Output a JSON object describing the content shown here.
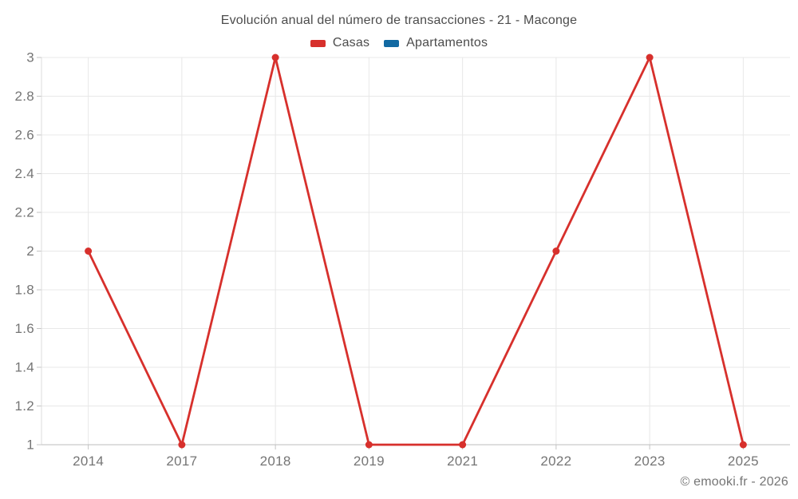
{
  "header": {
    "title": "Evolución anual del número de transacciones - 21 - Maconge"
  },
  "legend": {
    "items": [
      {
        "label": "Casas",
        "color": "#d7302c"
      },
      {
        "label": "Apartamentos",
        "color": "#1269a2"
      }
    ]
  },
  "chart_data": {
    "type": "line",
    "title": "Evolución anual del número de transacciones - 21 - Maconge",
    "categories": [
      "2014",
      "2017",
      "2018",
      "2019",
      "2021",
      "2022",
      "2023",
      "2025"
    ],
    "series": [
      {
        "name": "Casas",
        "color": "#d7302c",
        "values": [
          2,
          1,
          3,
          1,
          1,
          2,
          3,
          1
        ]
      },
      {
        "name": "Apartamentos",
        "color": "#1269a2",
        "values": []
      }
    ],
    "xlabel": "",
    "ylabel": "",
    "ylim": [
      1,
      3
    ],
    "y_ticks": {
      "values": [
        1,
        1.2,
        1.4,
        1.6,
        1.8,
        2,
        2.2,
        2.4,
        2.6,
        2.8,
        3
      ],
      "labels": [
        "1",
        "1.2",
        "1.4",
        "1.6",
        "1.8",
        "2",
        "2.2",
        "2.4",
        "2.6",
        "2.8",
        "3"
      ]
    },
    "grid": true,
    "legend_position": "top",
    "marker_radius": 4.5,
    "line_width": 2.8
  },
  "colors": {
    "grid": "#e8e8e8",
    "y_axis_line": "#dcdcdc",
    "x_axis_line": "#bdbdbd",
    "tick_mark": "#c4c4c4",
    "tick_label": "#757575",
    "title_text": "#4c4c4c"
  },
  "footer": {
    "copyright": "© emooki.fr - 2026"
  }
}
